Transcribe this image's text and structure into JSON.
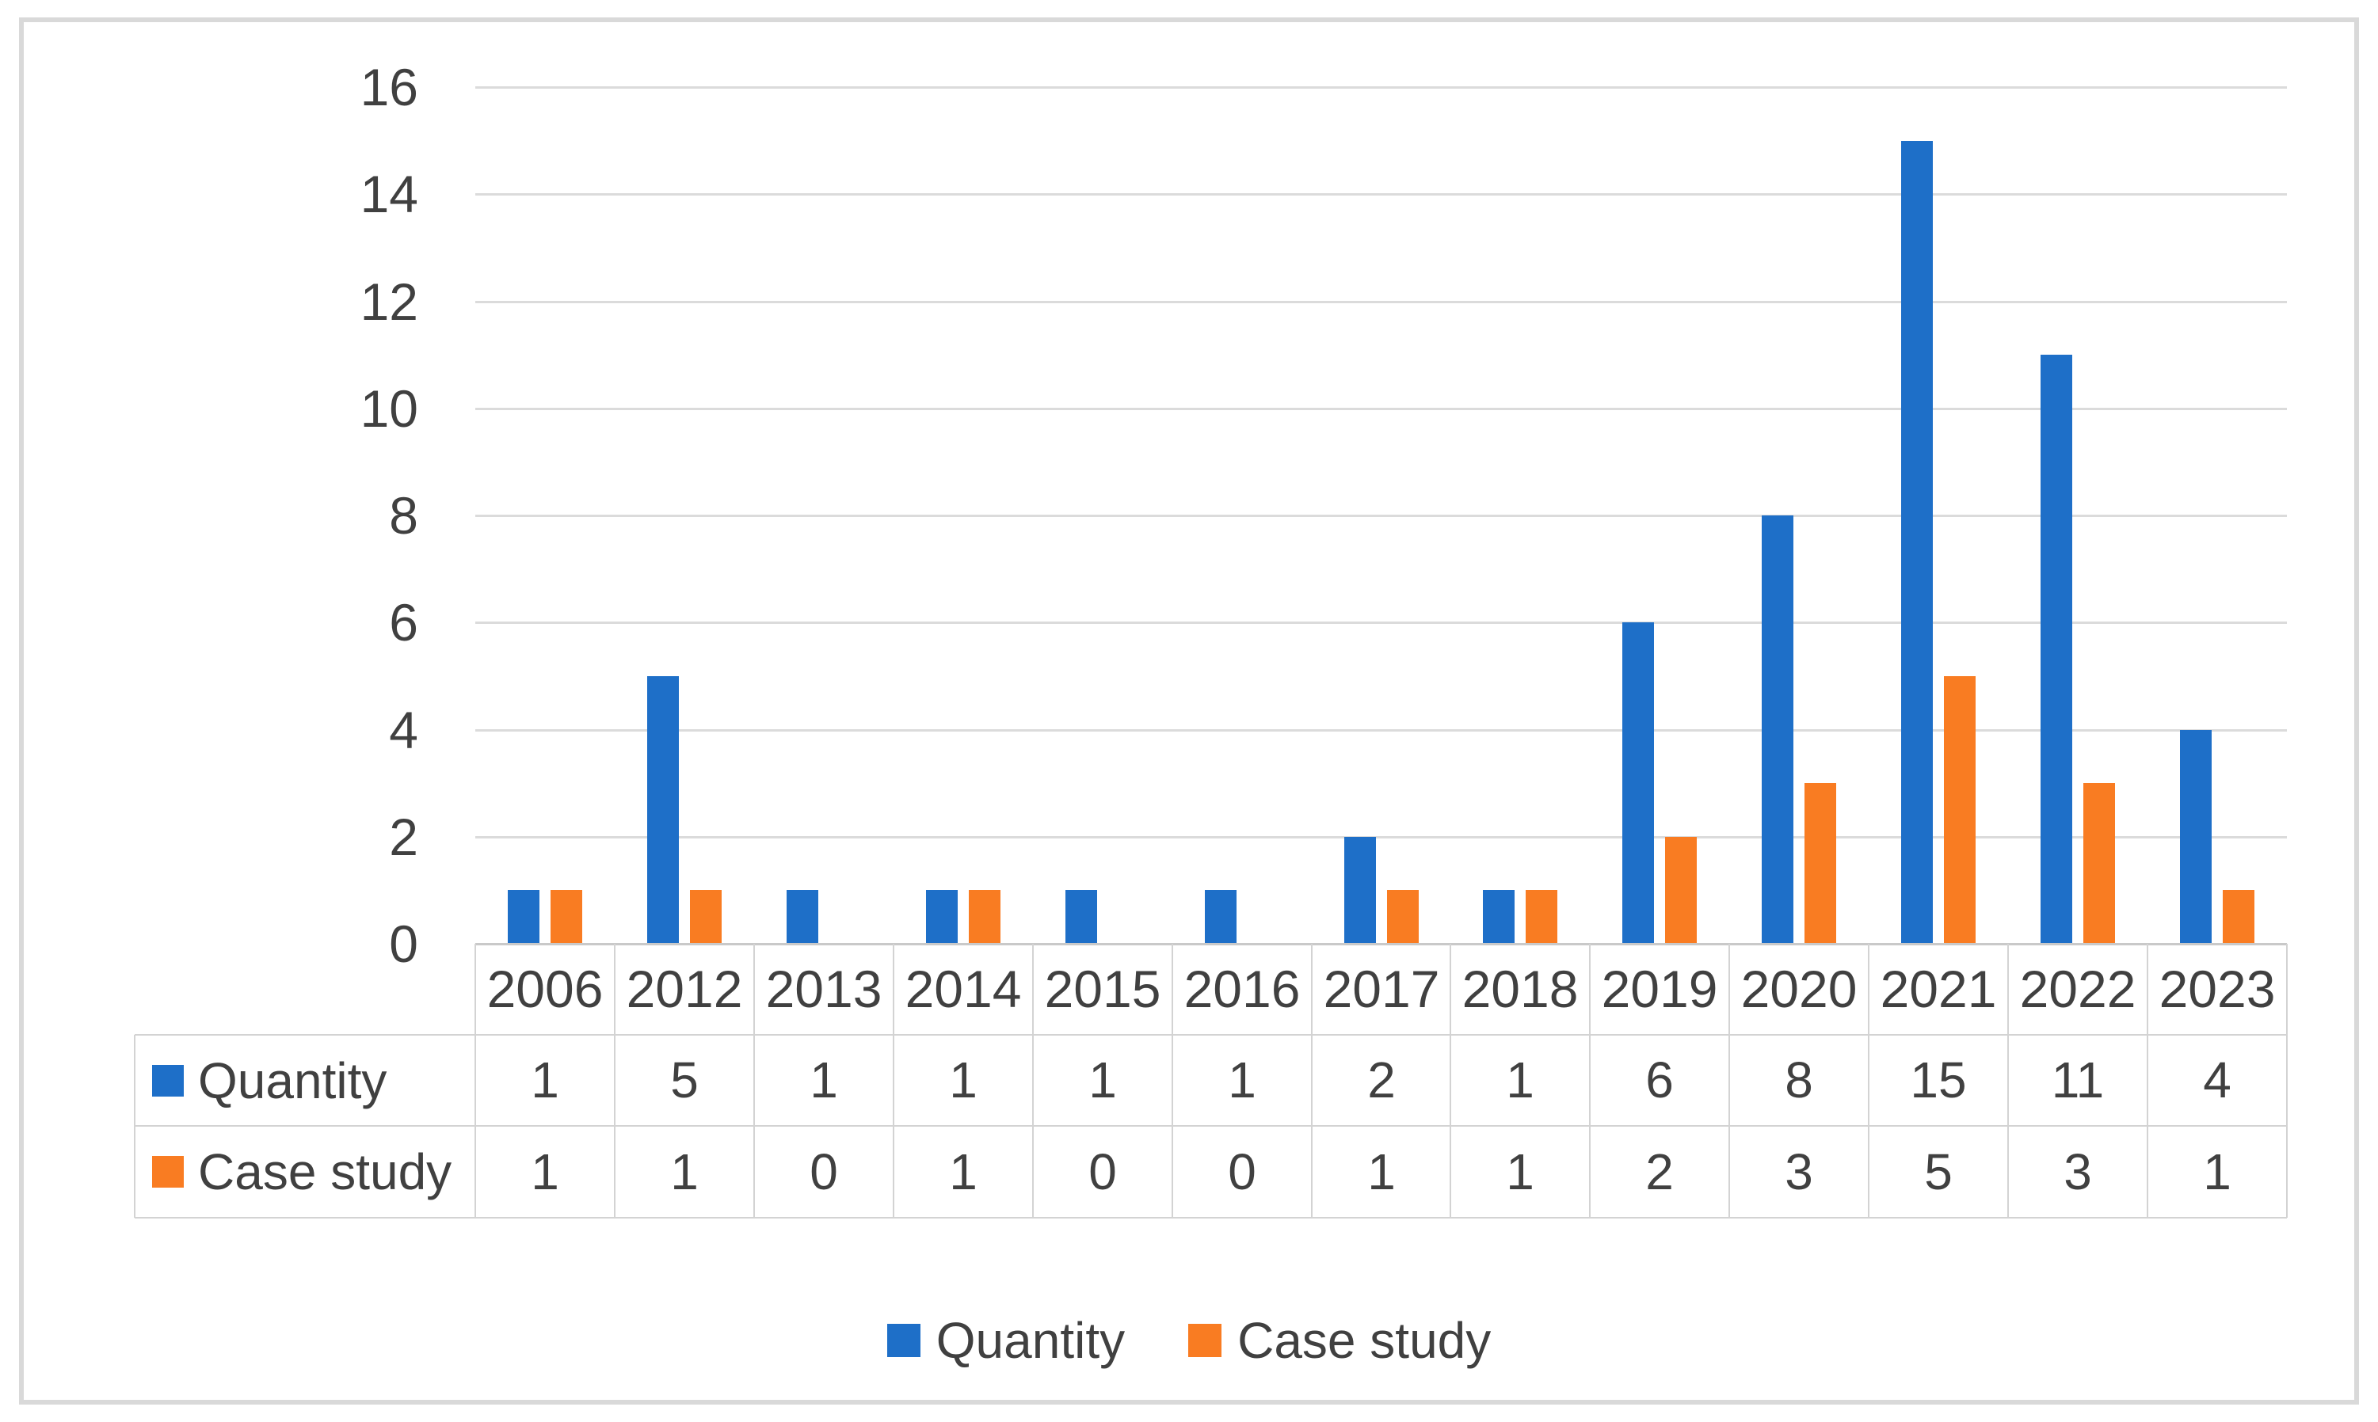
{
  "figure": {
    "background": "#FFFFFF",
    "border_color": "#D9D9D9"
  },
  "chart_data": {
    "type": "bar",
    "title": "",
    "xlabel": "",
    "ylabel": "",
    "categories": [
      "2006",
      "2012",
      "2013",
      "2014",
      "2015",
      "2016",
      "2017",
      "2018",
      "2019",
      "2020",
      "2021",
      "2022",
      "2023"
    ],
    "series": [
      {
        "name": "Quantity",
        "color": "#1E6FC8",
        "values": [
          1,
          5,
          1,
          1,
          1,
          1,
          2,
          1,
          6,
          8,
          15,
          11,
          4
        ]
      },
      {
        "name": "Case study",
        "color": "#F97C22",
        "values": [
          1,
          1,
          0,
          1,
          0,
          0,
          1,
          1,
          2,
          3,
          5,
          3,
          1
        ]
      }
    ],
    "ylim": [
      0,
      16
    ],
    "yticks": [
      0,
      2,
      4,
      6,
      8,
      10,
      12,
      14,
      16
    ],
    "grid": true,
    "gridline_color": "#DBDBDB",
    "axis_line_color": "#C9C9C9",
    "axis_text_color": "#404040",
    "legend_position": "bottom",
    "data_table": {
      "shown": true,
      "border_color": "#D3D3D3",
      "row_labels": [
        "Quantity",
        "Case study"
      ]
    }
  },
  "legend": {
    "items": [
      {
        "label": "Quantity",
        "color": "#1E6FC8"
      },
      {
        "label": "Case study",
        "color": "#F97C22"
      }
    ]
  }
}
